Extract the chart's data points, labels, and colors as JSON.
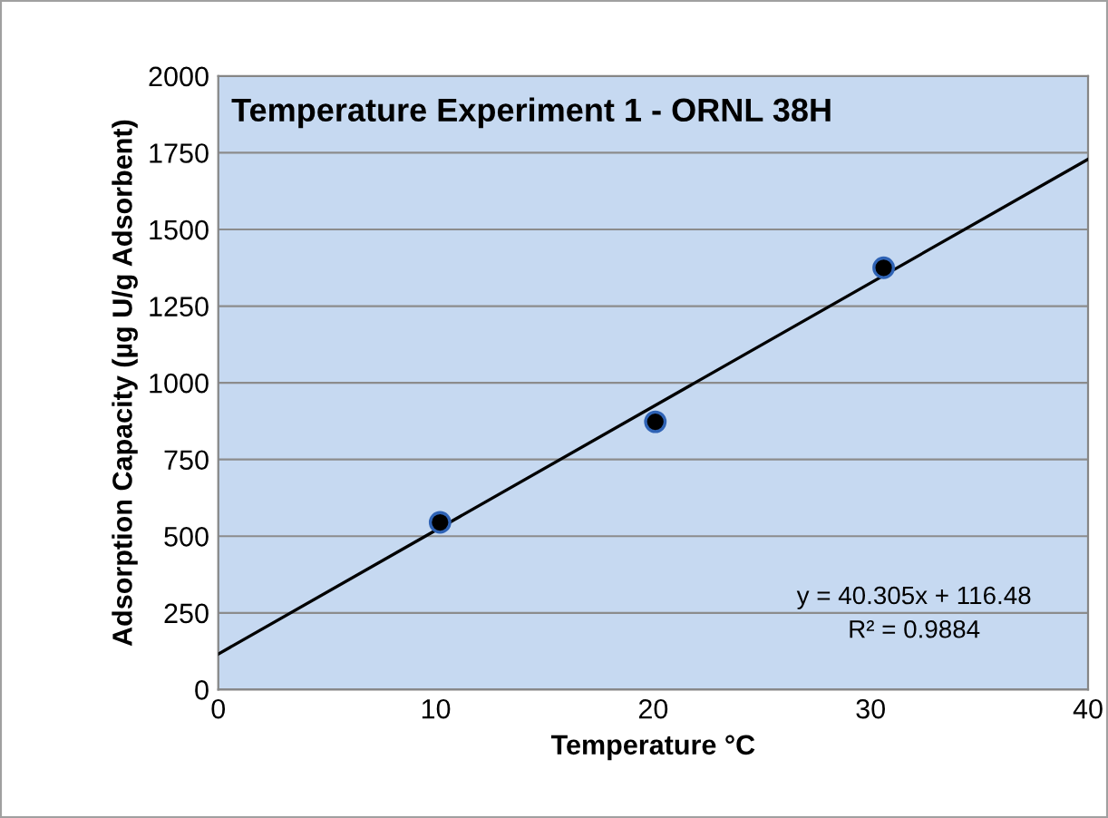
{
  "chart_data": {
    "type": "scatter",
    "title": "Temperature Experiment 1 - ORNL 38H",
    "xlabel": "Temperature °C",
    "ylabel": "Adsorption Capacity (µg U/g Adsorbent)",
    "series": [
      {
        "color": "#000000",
        "x": [
          10.2,
          20.1,
          30.6
        ],
        "values": [
          545,
          873,
          1375
        ],
        "marker": "circle"
      },
      {
        "type": "line",
        "color": "#000000",
        "x": [
          0,
          40
        ],
        "values": [
          116,
          1729
        ],
        "marker": "none",
        "line_style": "solid"
      }
    ],
    "annotations": [
      "y = 40.305x + 116.48",
      "R² = 0.9884"
    ],
    "xlim": [
      0,
      40
    ],
    "xticks": [
      0,
      10,
      20,
      30,
      40
    ],
    "ylim": [
      0,
      2000
    ],
    "yticks": [
      0,
      250,
      500,
      750,
      1000,
      1250,
      1500,
      1750,
      2000
    ],
    "grid": "y",
    "legend": false
  }
}
